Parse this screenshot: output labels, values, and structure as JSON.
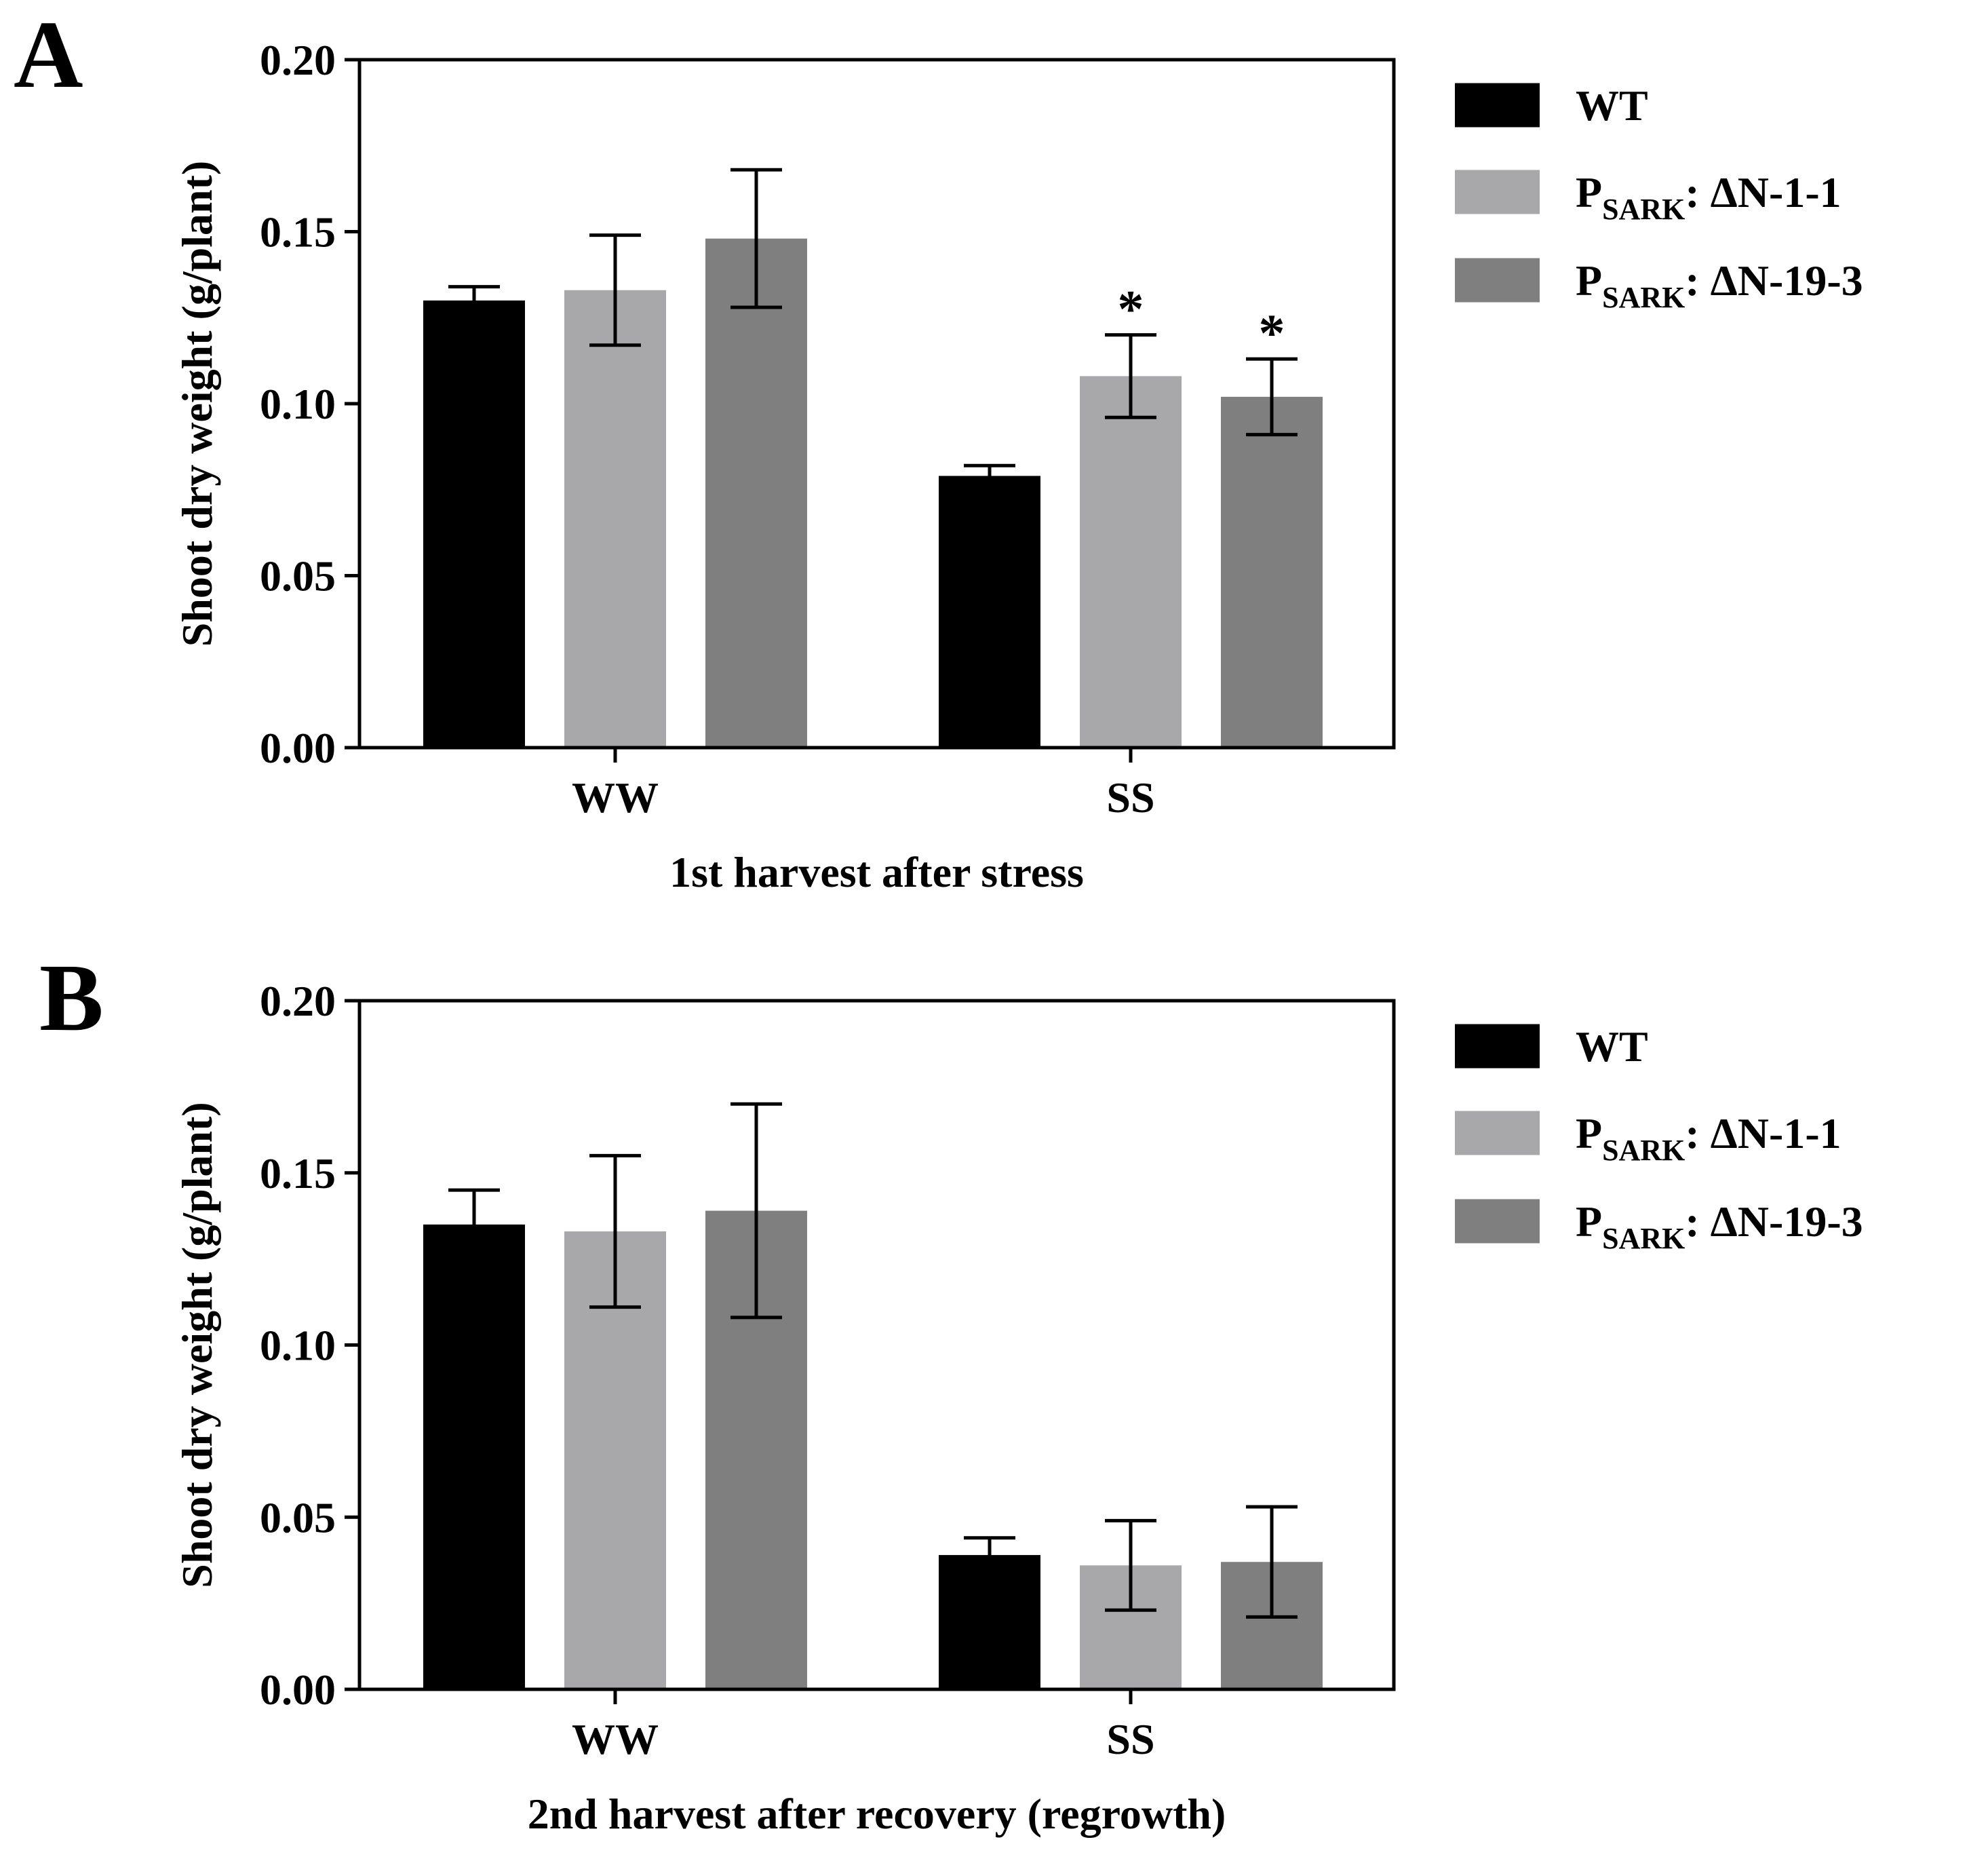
{
  "chart_data": [
    {
      "panel": "A",
      "type": "bar",
      "categories": [
        "WW",
        "SS"
      ],
      "xlabel": "1st harvest after stress",
      "ylabel": "Shoot dry weight (g/plant)",
      "ylim": [
        0,
        0.2
      ],
      "yticks": [
        "0.00",
        "0.05",
        "0.10",
        "0.15",
        "0.20"
      ],
      "series": [
        {
          "name": "WT",
          "color": "#000000",
          "values": [
            0.13,
            0.079
          ],
          "errors": [
            0.004,
            0.003
          ]
        },
        {
          "name": "PSARK: ΔN-1-1",
          "color": "#a8a8ab",
          "values": [
            0.133,
            0.108
          ],
          "errors": [
            0.016,
            0.012
          ]
        },
        {
          "name": "PSARK: ΔN-19-3",
          "color": "#7f7f7f",
          "values": [
            0.148,
            0.102
          ],
          "errors": [
            0.02,
            0.011
          ]
        }
      ],
      "annotations": [
        {
          "text": "*",
          "category": "SS",
          "series": "PSARK: ΔN-1-1"
        },
        {
          "text": "*",
          "category": "SS",
          "series": "PSARK: ΔN-19-3"
        }
      ],
      "legend": {
        "position": "right",
        "items": [
          {
            "main": "WT",
            "sub": "",
            "rest": ""
          },
          {
            "main": "P",
            "sub": "SARK",
            "rest": ": ΔN-1-1"
          },
          {
            "main": "P",
            "sub": "SARK",
            "rest": ": ΔN-19-3"
          }
        ]
      }
    },
    {
      "panel": "B",
      "type": "bar",
      "categories": [
        "WW",
        "SS"
      ],
      "xlabel": "2nd harvest after recovery (regrowth)",
      "ylabel": "Shoot dry weight (g/plant)",
      "ylim": [
        0,
        0.2
      ],
      "yticks": [
        "0.00",
        "0.05",
        "0.10",
        "0.15",
        "0.20"
      ],
      "series": [
        {
          "name": "WT",
          "color": "#000000",
          "values": [
            0.135,
            0.039
          ],
          "errors": [
            0.01,
            0.005
          ]
        },
        {
          "name": "PSARK: ΔN-1-1",
          "color": "#a8a8ab",
          "values": [
            0.133,
            0.036
          ],
          "errors": [
            0.022,
            0.013
          ]
        },
        {
          "name": "PSARK: ΔN-19-3",
          "color": "#7f7f7f",
          "values": [
            0.139,
            0.037
          ],
          "errors": [
            0.031,
            0.016
          ]
        }
      ],
      "annotations": [],
      "legend": {
        "position": "right",
        "items": [
          {
            "main": "WT",
            "sub": "",
            "rest": ""
          },
          {
            "main": "P",
            "sub": "SARK",
            "rest": ": ΔN-1-1"
          },
          {
            "main": "P",
            "sub": "SARK",
            "rest": ": ΔN-19-3"
          }
        ]
      }
    }
  ]
}
